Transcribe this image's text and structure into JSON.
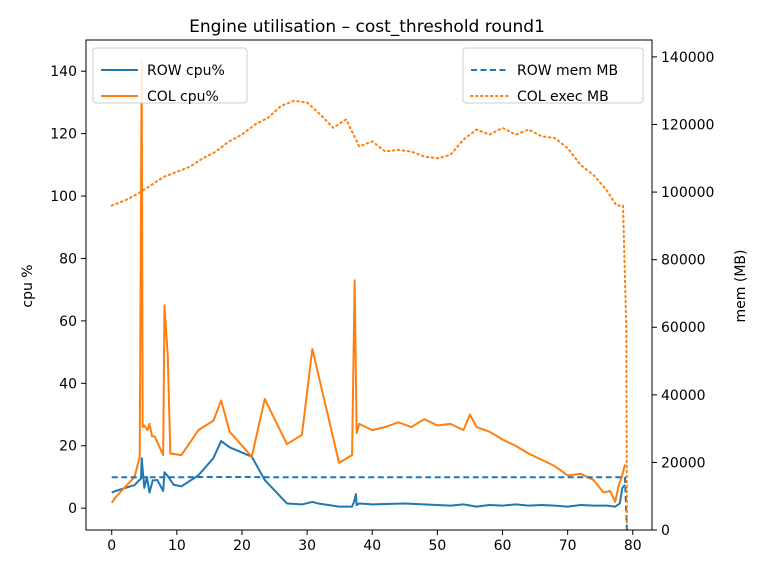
{
  "chart_data": {
    "type": "line",
    "title": "Engine utilisation – cost_threshold round1",
    "xlabel": "",
    "ylabel": "cpu %",
    "y2label": "mem (MB)",
    "xlim": [
      -3.95,
      82.95
    ],
    "ylim": [
      -7.0,
      150.0
    ],
    "y2lim": [
      0,
      145000
    ],
    "x_ticks": [
      0,
      10,
      20,
      30,
      40,
      50,
      60,
      70,
      80
    ],
    "y_ticks": [
      0,
      20,
      40,
      60,
      80,
      100,
      120,
      140
    ],
    "y2_ticks": [
      0,
      20000,
      40000,
      60000,
      80000,
      100000,
      120000,
      140000
    ],
    "grid": false,
    "legend_left": {
      "placement": "upper-left",
      "entries": [
        "ROW cpu%",
        "COL cpu%"
      ]
    },
    "legend_right": {
      "placement": "upper-right",
      "entries": [
        "ROW mem MB",
        "COL exec MB"
      ]
    },
    "colors": {
      "row": "#1f77b4",
      "col": "#ff7f0e"
    },
    "series": [
      {
        "name": "ROW cpu%",
        "axis": "left",
        "style": "solid",
        "color": "#1f77b4",
        "x": [
          0,
          0.6,
          3.5,
          4.5,
          4.6,
          5.0,
          5.4,
          5.8,
          6.3,
          7.0,
          7.9,
          8.1,
          8.6,
          9.5,
          10.7,
          13.3,
          15.6,
          16.8,
          18.1,
          21.5,
          23.5,
          26.9,
          29.2,
          30.8,
          31.7,
          34.9,
          36.9,
          37.2,
          37.5,
          37.6,
          38.0,
          40.0,
          45.0,
          50.0,
          52.0,
          54.0,
          56.0,
          58.0,
          60.0,
          62.0,
          64.0,
          66.0,
          68.0,
          70.0,
          72.0,
          74.0,
          76.0,
          77.3,
          78.0,
          78.4,
          78.8
        ],
        "y": [
          5.0,
          5.5,
          7.4,
          9.5,
          16.0,
          6.5,
          10.0,
          5.0,
          8.9,
          9.0,
          5.5,
          11.5,
          10.3,
          7.5,
          7.0,
          10.5,
          16.0,
          21.5,
          19.5,
          16.5,
          9.0,
          1.5,
          1.2,
          2.0,
          1.5,
          0.5,
          0.5,
          2.0,
          4.5,
          1.0,
          1.5,
          1.2,
          1.5,
          1.0,
          0.8,
          1.2,
          0.5,
          1.0,
          0.8,
          1.2,
          0.8,
          1.0,
          0.8,
          0.5,
          1.0,
          0.8,
          0.8,
          0.5,
          1.5,
          6.5,
          7.5
        ]
      },
      {
        "name": "COL cpu%",
        "axis": "left",
        "style": "solid",
        "color": "#ff7f0e",
        "x": [
          0,
          0.6,
          3.5,
          4.3,
          4.6,
          4.75,
          5.0,
          5.5,
          5.8,
          6.2,
          6.6,
          7.9,
          8.1,
          8.6,
          9.0,
          10.7,
          13.3,
          15.6,
          16.8,
          18.1,
          21.5,
          23.5,
          26.9,
          29.2,
          30.8,
          31.7,
          34.9,
          36.9,
          37.3,
          37.6,
          38.0,
          40.0,
          42.0,
          44.0,
          46.0,
          48.0,
          50.0,
          52.0,
          54.0,
          55.0,
          56.0,
          58.0,
          60.0,
          62.0,
          64.0,
          66.0,
          68.0,
          70.0,
          72.0,
          74.0,
          75.5,
          76.5,
          77.3,
          77.8,
          78.3,
          78.8
        ],
        "y": [
          1.7,
          3.5,
          10.0,
          16.5,
          143.0,
          26.0,
          26.5,
          25.0,
          27.0,
          23.0,
          23.0,
          17.0,
          65.0,
          49.0,
          17.5,
          17.0,
          25.0,
          28.0,
          34.5,
          24.5,
          16.5,
          35.0,
          20.5,
          23.5,
          51.0,
          43.0,
          14.5,
          17.0,
          73.0,
          24.0,
          27.0,
          25.0,
          26.0,
          27.5,
          26.0,
          28.5,
          26.5,
          27.0,
          25.0,
          30.0,
          26.0,
          24.5,
          22.0,
          20.0,
          17.5,
          15.5,
          13.5,
          10.5,
          11.0,
          9.0,
          5.0,
          5.5,
          2.0,
          7.0,
          10.0,
          14.0
        ]
      },
      {
        "name": "ROW mem MB",
        "axis": "right",
        "style": "dashed",
        "color": "#1f77b4",
        "x": [
          0,
          5,
          10,
          15,
          20,
          25,
          30,
          35,
          40,
          45,
          50,
          55,
          60,
          65,
          70,
          75,
          78.5,
          78.8,
          79.0,
          79.1
        ],
        "y": [
          15600,
          15600,
          15600,
          15700,
          15700,
          15600,
          15600,
          15600,
          15600,
          15600,
          15600,
          15600,
          15600,
          15600,
          15600,
          15600,
          15600,
          15600,
          5000,
          0
        ]
      },
      {
        "name": "COL exec MB",
        "axis": "right",
        "style": "dotted",
        "color": "#ff7f0e",
        "x": [
          0,
          2,
          4,
          6,
          8,
          10,
          12,
          14,
          16,
          18,
          20,
          22,
          24,
          26,
          28,
          30,
          32,
          34,
          36,
          38,
          40,
          42,
          44,
          46,
          48,
          50,
          52,
          54,
          56,
          58,
          60,
          62,
          64,
          66,
          68,
          70,
          72,
          74,
          76,
          77.5,
          78.5,
          79.0,
          79.1
        ],
        "y": [
          96000,
          97500,
          99500,
          102000,
          104500,
          106000,
          107500,
          110000,
          112000,
          115000,
          117000,
          120000,
          122000,
          125500,
          127000,
          126500,
          123000,
          119000,
          121500,
          113500,
          115000,
          112000,
          112500,
          112000,
          110500,
          110000,
          111000,
          115500,
          118500,
          117000,
          119000,
          117000,
          118500,
          116500,
          116000,
          113000,
          108000,
          105000,
          100500,
          96000,
          96000,
          60000,
          2000
        ]
      }
    ]
  }
}
